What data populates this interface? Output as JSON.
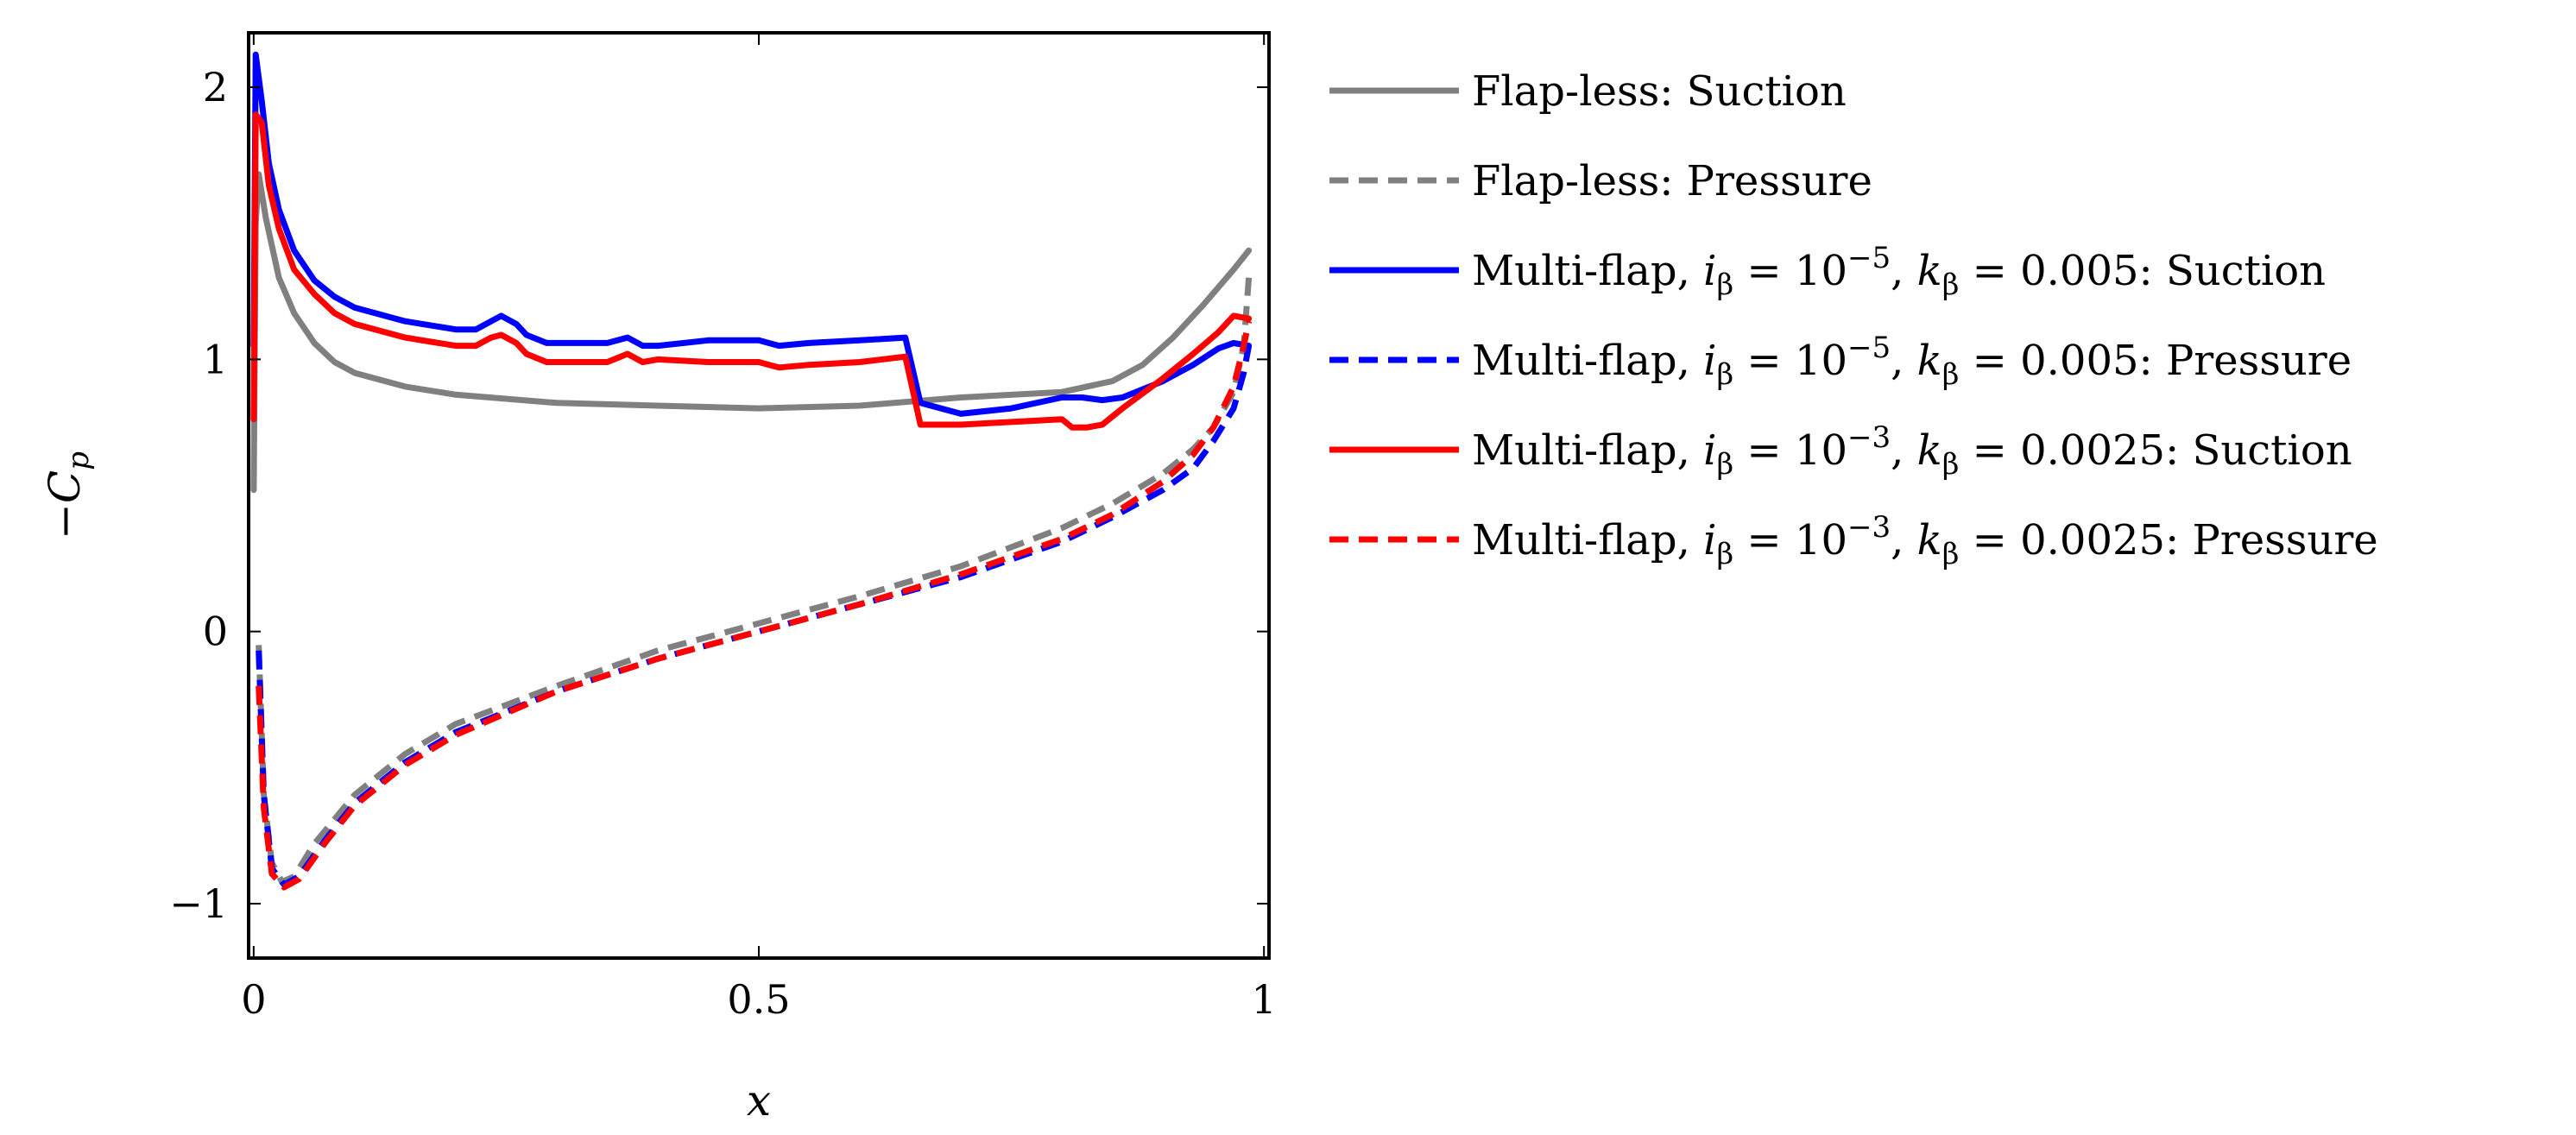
{
  "chart_data": {
    "type": "line",
    "title": "",
    "xlabel": "x",
    "ylabel": "−C_p",
    "xlim": [
      0,
      1
    ],
    "ylim": [
      -1.2,
      2.2
    ],
    "xticks": [
      0,
      0.5,
      1
    ],
    "yticks": [
      -1,
      0,
      1,
      2
    ],
    "xtick_labels": [
      "0",
      "0.5",
      "1"
    ],
    "ytick_labels": [
      "−1",
      "0",
      "1",
      "2"
    ],
    "grid": false,
    "legend_position": "outside-right",
    "series": [
      {
        "name": "Flap-less: Suction",
        "legend_parts": [
          {
            "t": "Flap-less: Suction"
          }
        ],
        "color": "#808080",
        "dash": "solid",
        "points": [
          [
            0.0,
            0.52
          ],
          [
            0.002,
            1.5
          ],
          [
            0.005,
            1.68
          ],
          [
            0.012,
            1.52
          ],
          [
            0.025,
            1.3
          ],
          [
            0.04,
            1.17
          ],
          [
            0.06,
            1.06
          ],
          [
            0.08,
            0.99
          ],
          [
            0.1,
            0.95
          ],
          [
            0.15,
            0.9
          ],
          [
            0.2,
            0.87
          ],
          [
            0.3,
            0.84
          ],
          [
            0.4,
            0.83
          ],
          [
            0.5,
            0.82
          ],
          [
            0.6,
            0.83
          ],
          [
            0.7,
            0.86
          ],
          [
            0.8,
            0.88
          ],
          [
            0.85,
            0.92
          ],
          [
            0.88,
            0.98
          ],
          [
            0.91,
            1.08
          ],
          [
            0.94,
            1.2
          ],
          [
            0.97,
            1.33
          ],
          [
            0.985,
            1.4
          ]
        ]
      },
      {
        "name": "Flap-less: Pressure",
        "legend_parts": [
          {
            "t": "Flap-less: Pressure"
          }
        ],
        "color": "#808080",
        "dash": "dashed",
        "points": [
          [
            0.005,
            -0.05
          ],
          [
            0.01,
            -0.6
          ],
          [
            0.018,
            -0.85
          ],
          [
            0.028,
            -0.92
          ],
          [
            0.04,
            -0.9
          ],
          [
            0.06,
            -0.78
          ],
          [
            0.1,
            -0.6
          ],
          [
            0.15,
            -0.45
          ],
          [
            0.2,
            -0.34
          ],
          [
            0.3,
            -0.2
          ],
          [
            0.4,
            -0.07
          ],
          [
            0.5,
            0.03
          ],
          [
            0.6,
            0.13
          ],
          [
            0.7,
            0.24
          ],
          [
            0.8,
            0.38
          ],
          [
            0.85,
            0.47
          ],
          [
            0.9,
            0.58
          ],
          [
            0.93,
            0.67
          ],
          [
            0.95,
            0.75
          ],
          [
            0.97,
            0.88
          ],
          [
            0.98,
            1.05
          ],
          [
            0.985,
            1.3
          ]
        ]
      },
      {
        "name": "Multi-flap, i_β = 10^−5, k_β = 0.005: Suction",
        "legend_parts": [
          {
            "t": "Multi-flap, "
          },
          {
            "t": "i",
            "i": 1
          },
          {
            "t": "β",
            "sub": 1
          },
          {
            "t": " = 10"
          },
          {
            "t": "−5",
            "sup": 1
          },
          {
            "t": ", "
          },
          {
            "t": "k",
            "i": 1
          },
          {
            "t": "β",
            "sub": 1
          },
          {
            "t": " = 0.005: Suction"
          }
        ],
        "color": "#0000ff",
        "dash": "solid",
        "points": [
          [
            0.0,
            1.05
          ],
          [
            0.002,
            2.12
          ],
          [
            0.008,
            1.95
          ],
          [
            0.015,
            1.72
          ],
          [
            0.025,
            1.55
          ],
          [
            0.04,
            1.4
          ],
          [
            0.06,
            1.29
          ],
          [
            0.08,
            1.23
          ],
          [
            0.1,
            1.19
          ],
          [
            0.15,
            1.14
          ],
          [
            0.2,
            1.11
          ],
          [
            0.22,
            1.11
          ],
          [
            0.235,
            1.14
          ],
          [
            0.245,
            1.16
          ],
          [
            0.26,
            1.13
          ],
          [
            0.27,
            1.09
          ],
          [
            0.29,
            1.06
          ],
          [
            0.35,
            1.06
          ],
          [
            0.37,
            1.08
          ],
          [
            0.385,
            1.05
          ],
          [
            0.4,
            1.05
          ],
          [
            0.45,
            1.07
          ],
          [
            0.5,
            1.07
          ],
          [
            0.52,
            1.05
          ],
          [
            0.55,
            1.06
          ],
          [
            0.6,
            1.07
          ],
          [
            0.645,
            1.08
          ],
          [
            0.66,
            0.84
          ],
          [
            0.7,
            0.8
          ],
          [
            0.75,
            0.82
          ],
          [
            0.8,
            0.86
          ],
          [
            0.82,
            0.86
          ],
          [
            0.84,
            0.85
          ],
          [
            0.86,
            0.86
          ],
          [
            0.9,
            0.92
          ],
          [
            0.93,
            0.98
          ],
          [
            0.955,
            1.04
          ],
          [
            0.97,
            1.06
          ],
          [
            0.985,
            1.05
          ]
        ]
      },
      {
        "name": "Multi-flap, i_β = 10^−5, k_β = 0.005: Pressure",
        "legend_parts": [
          {
            "t": "Multi-flap, "
          },
          {
            "t": "i",
            "i": 1
          },
          {
            "t": "β",
            "sub": 1
          },
          {
            "t": " = 10"
          },
          {
            "t": "−5",
            "sup": 1
          },
          {
            "t": ", "
          },
          {
            "t": "k",
            "i": 1
          },
          {
            "t": "β",
            "sub": 1
          },
          {
            "t": " = 0.005: Pressure"
          }
        ],
        "color": "#0000ff",
        "dash": "dashed",
        "points": [
          [
            0.005,
            -0.07
          ],
          [
            0.01,
            -0.6
          ],
          [
            0.018,
            -0.87
          ],
          [
            0.03,
            -0.93
          ],
          [
            0.045,
            -0.9
          ],
          [
            0.07,
            -0.77
          ],
          [
            0.1,
            -0.63
          ],
          [
            0.15,
            -0.48
          ],
          [
            0.2,
            -0.37
          ],
          [
            0.3,
            -0.22
          ],
          [
            0.4,
            -0.1
          ],
          [
            0.5,
            0.0
          ],
          [
            0.6,
            0.1
          ],
          [
            0.7,
            0.2
          ],
          [
            0.8,
            0.33
          ],
          [
            0.85,
            0.42
          ],
          [
            0.9,
            0.52
          ],
          [
            0.93,
            0.6
          ],
          [
            0.95,
            0.7
          ],
          [
            0.97,
            0.82
          ],
          [
            0.98,
            0.95
          ],
          [
            0.985,
            1.05
          ]
        ]
      },
      {
        "name": "Multi-flap, i_β = 10^−3, k_β = 0.0025: Suction",
        "legend_parts": [
          {
            "t": "Multi-flap, "
          },
          {
            "t": "i",
            "i": 1
          },
          {
            "t": "β",
            "sub": 1
          },
          {
            "t": " = 10"
          },
          {
            "t": "−3",
            "sup": 1
          },
          {
            "t": ", "
          },
          {
            "t": "k",
            "i": 1
          },
          {
            "t": "β",
            "sub": 1
          },
          {
            "t": " = 0.0025: Suction"
          }
        ],
        "color": "#ff0000",
        "dash": "solid",
        "points": [
          [
            0.0,
            0.78
          ],
          [
            0.002,
            1.9
          ],
          [
            0.008,
            1.87
          ],
          [
            0.015,
            1.64
          ],
          [
            0.025,
            1.48
          ],
          [
            0.04,
            1.33
          ],
          [
            0.06,
            1.24
          ],
          [
            0.08,
            1.17
          ],
          [
            0.1,
            1.13
          ],
          [
            0.15,
            1.08
          ],
          [
            0.2,
            1.05
          ],
          [
            0.22,
            1.05
          ],
          [
            0.235,
            1.08
          ],
          [
            0.245,
            1.09
          ],
          [
            0.26,
            1.06
          ],
          [
            0.27,
            1.02
          ],
          [
            0.29,
            0.99
          ],
          [
            0.35,
            0.99
          ],
          [
            0.37,
            1.02
          ],
          [
            0.385,
            0.99
          ],
          [
            0.4,
            1.0
          ],
          [
            0.45,
            0.99
          ],
          [
            0.5,
            0.99
          ],
          [
            0.52,
            0.97
          ],
          [
            0.55,
            0.98
          ],
          [
            0.6,
            0.99
          ],
          [
            0.645,
            1.01
          ],
          [
            0.66,
            0.76
          ],
          [
            0.7,
            0.76
          ],
          [
            0.75,
            0.77
          ],
          [
            0.8,
            0.78
          ],
          [
            0.81,
            0.75
          ],
          [
            0.825,
            0.75
          ],
          [
            0.84,
            0.76
          ],
          [
            0.86,
            0.82
          ],
          [
            0.9,
            0.93
          ],
          [
            0.93,
            1.02
          ],
          [
            0.955,
            1.1
          ],
          [
            0.97,
            1.16
          ],
          [
            0.985,
            1.15
          ]
        ]
      },
      {
        "name": "Multi-flap, i_β = 10^−3, k_β = 0.0025: Pressure",
        "legend_parts": [
          {
            "t": "Multi-flap, "
          },
          {
            "t": "i",
            "i": 1
          },
          {
            "t": "β",
            "sub": 1
          },
          {
            "t": " = 10"
          },
          {
            "t": "−3",
            "sup": 1
          },
          {
            "t": ", "
          },
          {
            "t": "k",
            "i": 1
          },
          {
            "t": "β",
            "sub": 1
          },
          {
            "t": " = 0.0025: Pressure"
          }
        ],
        "color": "#ff0000",
        "dash": "dashed",
        "points": [
          [
            0.005,
            -0.2
          ],
          [
            0.01,
            -0.65
          ],
          [
            0.018,
            -0.89
          ],
          [
            0.03,
            -0.94
          ],
          [
            0.045,
            -0.91
          ],
          [
            0.07,
            -0.78
          ],
          [
            0.1,
            -0.64
          ],
          [
            0.15,
            -0.49
          ],
          [
            0.2,
            -0.38
          ],
          [
            0.3,
            -0.22
          ],
          [
            0.4,
            -0.1
          ],
          [
            0.5,
            0.0
          ],
          [
            0.6,
            0.1
          ],
          [
            0.7,
            0.21
          ],
          [
            0.8,
            0.34
          ],
          [
            0.85,
            0.43
          ],
          [
            0.9,
            0.55
          ],
          [
            0.93,
            0.65
          ],
          [
            0.95,
            0.75
          ],
          [
            0.97,
            0.9
          ],
          [
            0.98,
            1.05
          ],
          [
            0.985,
            1.14
          ]
        ]
      }
    ]
  }
}
